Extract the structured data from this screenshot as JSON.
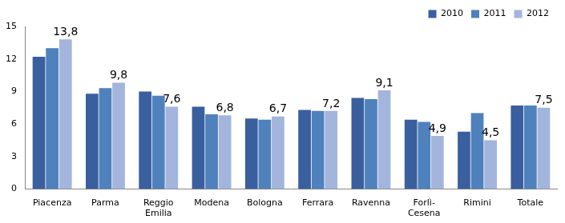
{
  "chart_data": {
    "type": "bar",
    "categories": [
      "Piacenza",
      "Parma",
      "Reggio Emilia",
      "Modena",
      "Bologna",
      "Ferrara",
      "Ravenna",
      "Forlì-Cesena",
      "Rimini",
      "Totale"
    ],
    "series": [
      {
        "name": "2010",
        "color": "#3a5f9e",
        "values": [
          12.2,
          8.8,
          9.0,
          7.6,
          6.5,
          7.3,
          8.4,
          6.4,
          5.3,
          7.7
        ]
      },
      {
        "name": "2011",
        "color": "#4f81bd",
        "values": [
          13.0,
          9.3,
          8.6,
          6.9,
          6.4,
          7.2,
          8.3,
          6.2,
          7.0,
          7.7
        ]
      },
      {
        "name": "2012",
        "color": "#a3b5dc",
        "values": [
          13.8,
          9.8,
          7.6,
          6.8,
          6.7,
          7.2,
          9.1,
          4.9,
          4.5,
          7.5
        ],
        "data_labels": true,
        "value_labels": [
          "13,8",
          "9,8",
          "7,6",
          "6,8",
          "6,7",
          "7,2",
          "9,1",
          "4,9",
          "4,5",
          "7,5"
        ]
      }
    ],
    "ylim": [
      0,
      15
    ],
    "yticks": [
      0,
      3,
      6,
      9,
      12,
      15
    ],
    "grid": false,
    "legend": "upper right"
  }
}
